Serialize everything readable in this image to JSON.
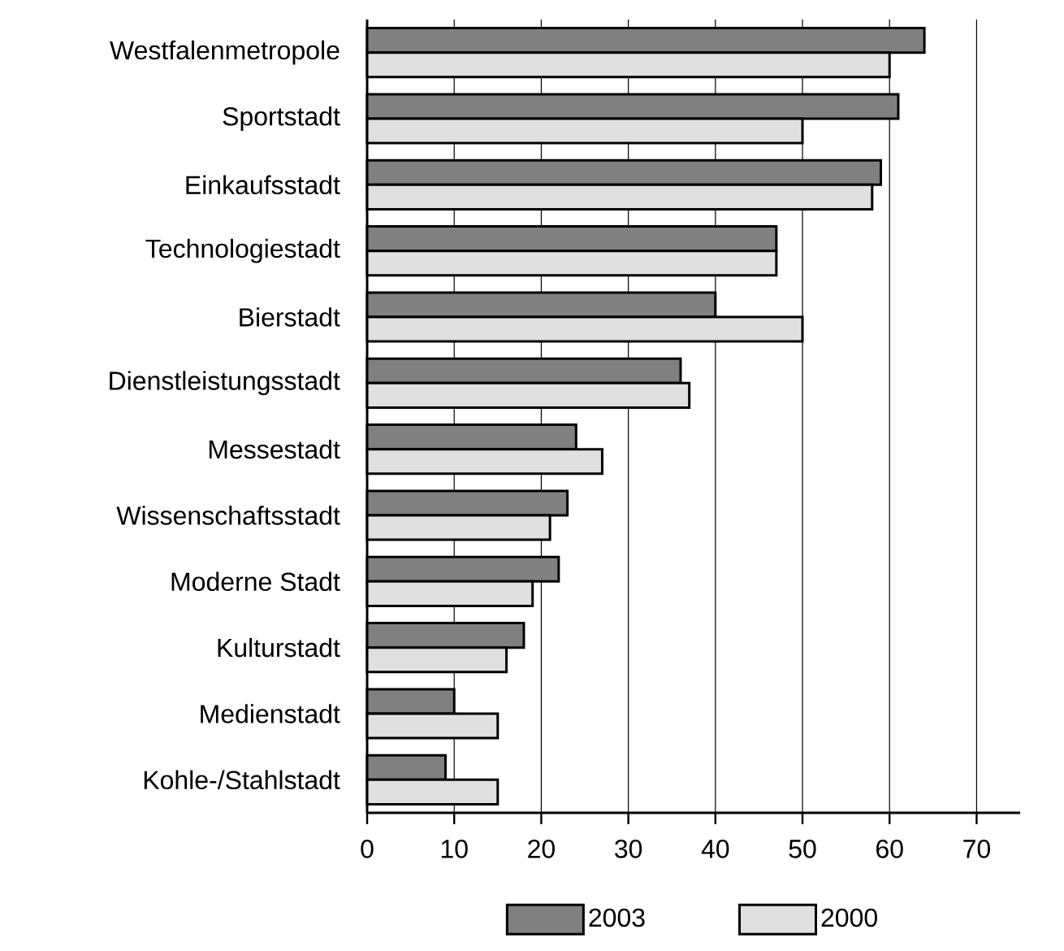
{
  "chart_data": {
    "type": "bar",
    "orientation": "horizontal",
    "categories": [
      "Westfalenmetropole",
      "Sportstadt",
      "Einkaufsstadt",
      "Technologiestadt",
      "Bierstadt",
      "Dienstleistungsstadt",
      "Messestadt",
      "Wissenschaftsstadt",
      "Moderne Stadt",
      "Kulturstadt",
      "Medienstadt",
      "Kohle-/Stahlstadt"
    ],
    "series": [
      {
        "name": "2003",
        "color": "#808080",
        "values": [
          64,
          61,
          59,
          47,
          40,
          36,
          24,
          23,
          22,
          18,
          10,
          9
        ]
      },
      {
        "name": "2000",
        "color": "#e0e0e0",
        "values": [
          60,
          50,
          58,
          47,
          50,
          37,
          27,
          21,
          19,
          16,
          15,
          15
        ]
      }
    ],
    "xlim": [
      0,
      75
    ],
    "xticks": [
      0,
      10,
      20,
      30,
      40,
      50,
      60,
      70
    ],
    "grid": "x",
    "legend": "bottom"
  }
}
